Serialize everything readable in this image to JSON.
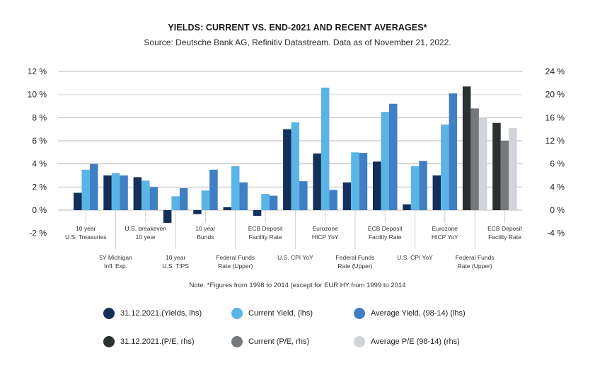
{
  "chart_data": {
    "type": "bar",
    "title": "YIELDS: CURRENT VS. END-2021 AND RECENT AVERAGES*",
    "subtitle": "Source: Deutsche Bank AG, Refinitiv Datastream. Data as of November 21, 2022.",
    "note": "Note: *Figures from 1998 to 2014 (except for EUR HY from 1999 to 2014",
    "ylabel_left": "",
    "ylabel_right": "",
    "ylim_left": [
      -2,
      12
    ],
    "ylim_right": [
      -4,
      24
    ],
    "left_ticks": [
      "12 %",
      "10 %",
      "8 %",
      "6 %",
      "4 %",
      "2 %",
      "0 %",
      "-2 %"
    ],
    "right_ticks": [
      "24 %",
      "20 %",
      "16 %",
      "12 %",
      "6 %",
      "4 %",
      "0 %",
      "-4 %"
    ],
    "grid": true,
    "legend_position": "bottom",
    "categories": [
      {
        "label": [
          "10 year",
          "U.S. Treasuries"
        ],
        "row": "upper"
      },
      {
        "label": [
          "5Y Michigan",
          "Infl. Exp."
        ],
        "row": "lower"
      },
      {
        "label": [
          "U.S. breakeven",
          "10 year"
        ],
        "row": "upper"
      },
      {
        "label": [
          "10 year",
          "U.S. TIPS"
        ],
        "row": "lower"
      },
      {
        "label": [
          "10 year",
          "Bunds"
        ],
        "row": "upper"
      },
      {
        "label": [
          "Federal Funds",
          "Rate (Upper)"
        ],
        "row": "lower"
      },
      {
        "label": [
          "ECB Deposit",
          "Facility Rate"
        ],
        "row": "upper"
      },
      {
        "label": [
          "U.S. CPI YoY"
        ],
        "row": "lower"
      },
      {
        "label": [
          "Eurozone",
          "HICP YoY"
        ],
        "row": "upper"
      },
      {
        "label": [
          "Federal Funds",
          "Rate (Upper)"
        ],
        "row": "lower"
      },
      {
        "label": [
          "ECB Deposit",
          "Facility Rate"
        ],
        "row": "upper"
      },
      {
        "label": [
          "U.S. CPI YoY"
        ],
        "row": "lower"
      },
      {
        "label": [
          "Eurozone",
          "HICP YoY"
        ],
        "row": "upper"
      },
      {
        "label": [
          "Federal Funds",
          "Rate (Upper)"
        ],
        "row": "lower"
      },
      {
        "label": [
          "ECB Deposit",
          "Facility Rate"
        ],
        "row": "upper"
      }
    ],
    "series": [
      {
        "name": "31.12.2021.(Yields, lhs)",
        "axis": "left",
        "color": "#13305a",
        "values": [
          1.5,
          3.0,
          2.85,
          -1.1,
          -0.35,
          0.25,
          -0.5,
          7.0,
          4.9,
          2.4,
          4.2,
          0.5,
          3.0,
          null,
          null
        ]
      },
      {
        "name": "Current Yield, (lhs)",
        "axis": "left",
        "color": "#5bb4e6",
        "values": [
          3.5,
          3.2,
          2.55,
          1.2,
          1.7,
          3.8,
          1.4,
          7.6,
          10.6,
          5.0,
          8.5,
          3.8,
          7.4,
          null,
          null
        ]
      },
      {
        "name": "Average Yield, (98-14) (lhs)",
        "axis": "left",
        "color": "#3f7fc4",
        "values": [
          4.0,
          3.0,
          2.0,
          1.9,
          3.5,
          2.4,
          1.25,
          2.5,
          1.75,
          4.95,
          9.2,
          4.25,
          10.1,
          null,
          null
        ]
      },
      {
        "name": "31.12.2021.(P/E, rhs)",
        "axis": "right",
        "color": "#2b3030",
        "values": [
          null,
          null,
          null,
          null,
          null,
          null,
          null,
          null,
          null,
          null,
          null,
          null,
          null,
          21.4,
          15.1
        ]
      },
      {
        "name": "Current (P/E, rhs)",
        "axis": "right",
        "color": "#76797c",
        "values": [
          null,
          null,
          null,
          null,
          null,
          null,
          null,
          null,
          null,
          null,
          null,
          null,
          null,
          17.6,
          12.0
        ]
      },
      {
        "name": "Average P/E (98-14) (rhs)",
        "axis": "right",
        "color": "#d0d3d7",
        "values": [
          null,
          null,
          null,
          null,
          null,
          null,
          null,
          null,
          null,
          null,
          null,
          null,
          null,
          16.0,
          14.2
        ]
      }
    ]
  }
}
